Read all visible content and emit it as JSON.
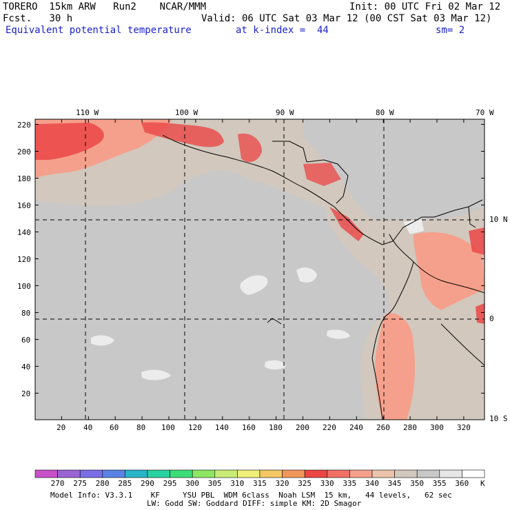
{
  "header": {
    "model": "TORERO  15km ARW   Run2    NCAR/MMM",
    "init": "Init: 00 UTC Fri 02 Mar 12",
    "fcst": "Fcst.   30 h",
    "valid": "Valid: 06 UTC Sat 03 Mar 12 (00 CST Sat 03 Mar 12)",
    "field": "Equivalent potential temperature",
    "level": "at k-index =  44",
    "smooth": "sm= 2"
  },
  "axes": {
    "top_lon": [
      "110 W",
      "100 W",
      "90 W",
      "80 W",
      "70 W"
    ],
    "right_lat": [
      "10 N",
      "0",
      "10 S"
    ],
    "x_ticks": [
      "20",
      "40",
      "60",
      "80",
      "100",
      "120",
      "140",
      "160",
      "180",
      "200",
      "220",
      "240",
      "260",
      "280",
      "300",
      "320"
    ],
    "y_ticks": [
      "220",
      "200",
      "180",
      "160",
      "140",
      "120",
      "100",
      "80",
      "60",
      "40",
      "20"
    ]
  },
  "colorbar": {
    "labels": [
      "270",
      "275",
      "280",
      "285",
      "290",
      "295",
      "300",
      "305",
      "310",
      "315",
      "320",
      "325",
      "330",
      "335",
      "340",
      "345",
      "350",
      "355",
      "360"
    ],
    "unit": "K",
    "colors": [
      "#c850c8",
      "#9a64d2",
      "#7a6ee6",
      "#5a82e6",
      "#2ab4c8",
      "#28d2a0",
      "#3cdc78",
      "#8ce664",
      "#c8ec78",
      "#f0f078",
      "#f5c864",
      "#f0965a",
      "#eb4646",
      "#f07064",
      "#f5a08c",
      "#ebc3aa",
      "#d2c8bd",
      "#c8c8c8",
      "#e6e6e6",
      "#ffffff"
    ]
  },
  "footer": {
    "line1": "Model Info: V3.3.1    KF     YSU PBL  WDM 6class  Noah LSM  15 km,   44 levels,   62 sec",
    "line2": "LW: Godd SW: Goddard DIFF: simple KM: 2D Smagor"
  },
  "map": {
    "ocean_color": "#c8c8c8",
    "warm_color": "#d2c8bd",
    "hot_color": "#eb4646",
    "warm2_color": "#f5a08c",
    "white_patch": "#ececec"
  }
}
